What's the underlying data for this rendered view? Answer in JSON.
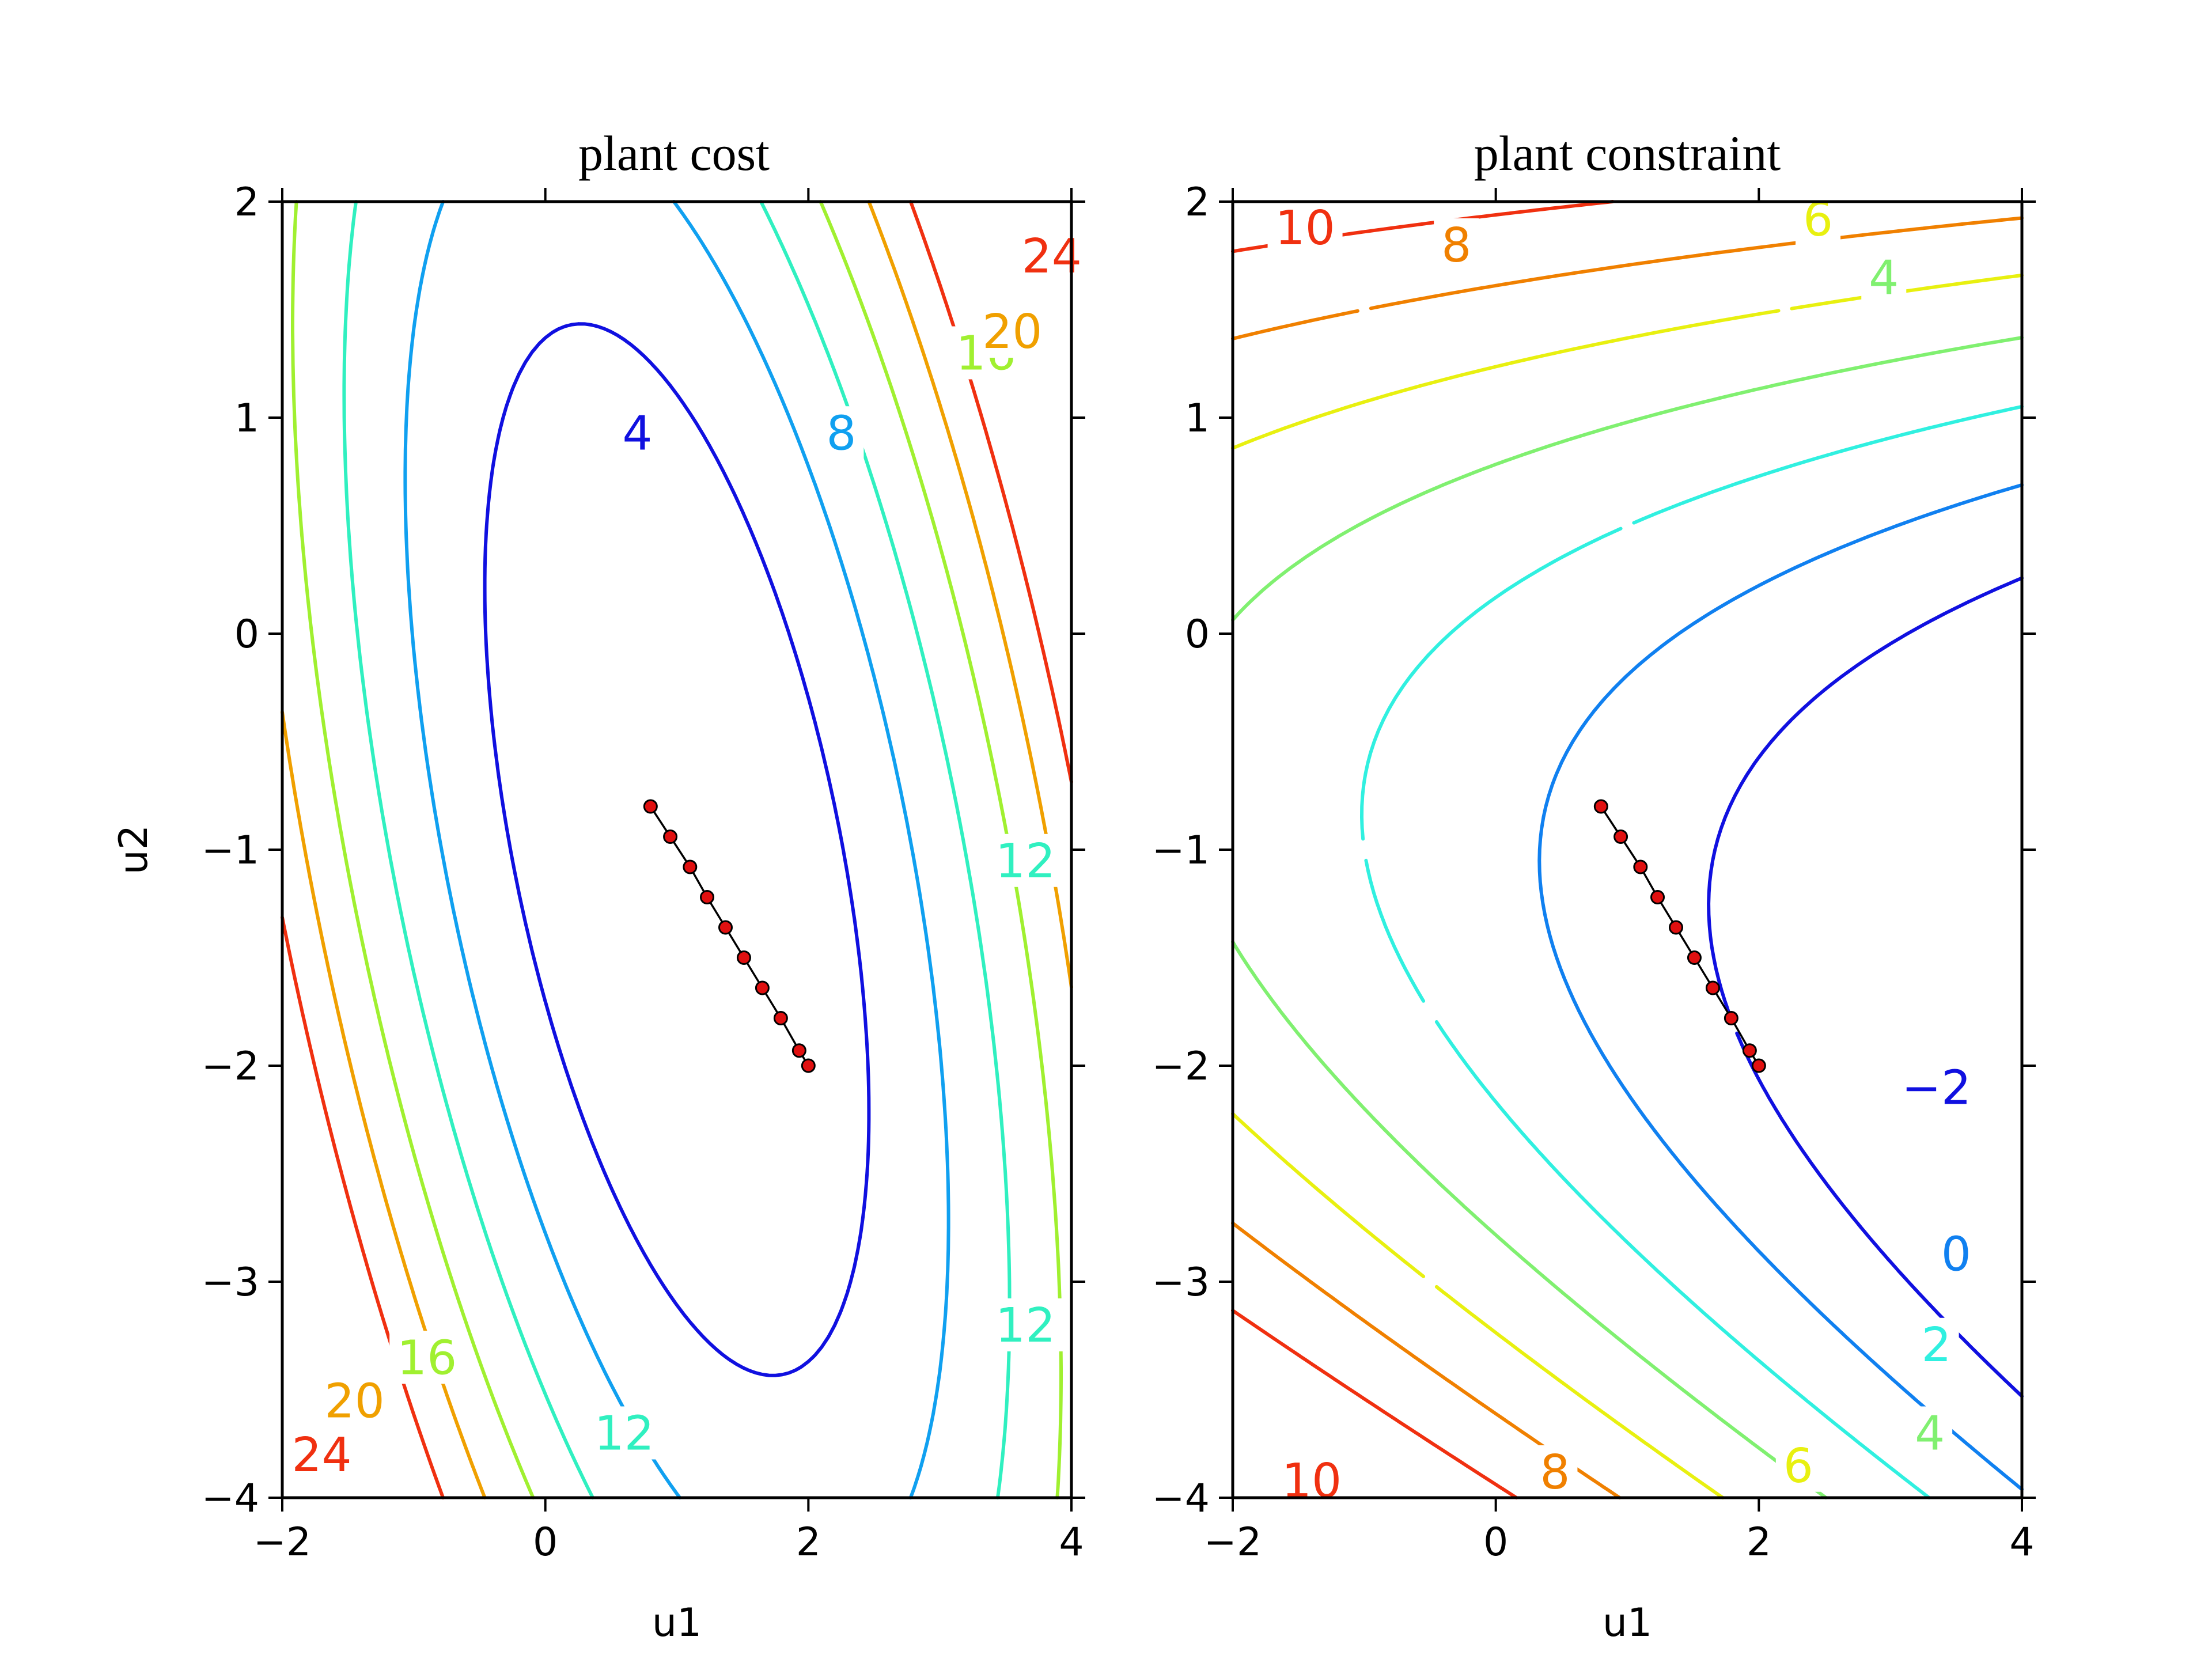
{
  "chart_data": [
    {
      "type": "contour",
      "title": "plant cost",
      "xlabel": "u1",
      "ylabel": "u2",
      "xlim": [
        -2,
        4
      ],
      "ylim": [
        -4,
        2
      ],
      "xticks": [
        "−2",
        "0",
        "2",
        "4"
      ],
      "yticks": [
        "−4",
        "−3",
        "−2",
        "−1",
        "0",
        "1",
        "2"
      ],
      "contour_levels": [
        4,
        8,
        12,
        16,
        20,
        24
      ],
      "labels": [
        {
          "text": "4",
          "x": 0.7,
          "y": 0.93,
          "color": "#1010e0"
        },
        {
          "text": "8",
          "x": 2.25,
          "y": 0.93,
          "color": "#10a0f0"
        },
        {
          "text": "12",
          "x": 3.65,
          "y": -1.05,
          "color": "#30f0c0"
        },
        {
          "text": "12",
          "x": 3.65,
          "y": -3.2,
          "color": "#30f0c0"
        },
        {
          "text": "12",
          "x": 0.6,
          "y": -3.7,
          "color": "#30f0c0"
        },
        {
          "text": "16",
          "x": 3.35,
          "y": 1.3,
          "color": "#a0f030"
        },
        {
          "text": "16",
          "x": -0.9,
          "y": -3.35,
          "color": "#a0f030"
        },
        {
          "text": "20",
          "x": 3.55,
          "y": 1.4,
          "color": "#f0a000"
        },
        {
          "text": "20",
          "x": -1.45,
          "y": -3.55,
          "color": "#f0a000"
        },
        {
          "text": "24",
          "x": 3.85,
          "y": 1.75,
          "color": "#f03010"
        },
        {
          "text": "24",
          "x": -1.7,
          "y": -3.8,
          "color": "#f03010"
        }
      ],
      "path": {
        "x": [
          0.8,
          0.95,
          1.1,
          1.23,
          1.37,
          1.51,
          1.65,
          1.79,
          1.93,
          2.0
        ],
        "y": [
          -0.8,
          -0.94,
          -1.08,
          -1.22,
          -1.36,
          -1.5,
          -1.64,
          -1.78,
          -1.93,
          -2.0
        ]
      }
    },
    {
      "type": "contour",
      "title": "plant constraint",
      "xlabel": "u1",
      "ylabel": "",
      "xlim": [
        -2,
        4
      ],
      "ylim": [
        -4,
        2
      ],
      "xticks": [
        "−2",
        "0",
        "2",
        "4"
      ],
      "yticks": [
        "−4",
        "−3",
        "−2",
        "−1",
        "0",
        "1",
        "2"
      ],
      "contour_levels": [
        -2,
        0,
        2,
        4,
        6,
        8,
        10
      ],
      "labels": [
        {
          "text": "10",
          "x": -1.45,
          "y": 1.88,
          "color": "#f03010"
        },
        {
          "text": "8",
          "x": -0.3,
          "y": 1.8,
          "color": "#f08000"
        },
        {
          "text": "6",
          "x": 2.45,
          "y": 1.92,
          "color": "#e8f010"
        },
        {
          "text": "4",
          "x": 2.95,
          "y": 1.65,
          "color": "#80f070"
        },
        {
          "text": "−2",
          "x": 3.35,
          "y": -2.1,
          "color": "#1010e0"
        },
        {
          "text": "0",
          "x": 3.5,
          "y": -2.87,
          "color": "#1080f0"
        },
        {
          "text": "2",
          "x": 3.35,
          "y": -3.29,
          "color": "#30f0e0"
        },
        {
          "text": "4",
          "x": 3.3,
          "y": -3.7,
          "color": "#80f070"
        },
        {
          "text": "6",
          "x": 2.3,
          "y": -3.85,
          "color": "#e8f010"
        },
        {
          "text": "8",
          "x": 0.45,
          "y": -3.88,
          "color": "#f08000"
        },
        {
          "text": "10",
          "x": -1.4,
          "y": -3.92,
          "color": "#f03010"
        }
      ],
      "path": {
        "x": [
          0.8,
          0.95,
          1.1,
          1.23,
          1.37,
          1.51,
          1.65,
          1.79,
          1.93,
          2.0
        ],
        "y": [
          -0.8,
          -0.94,
          -1.08,
          -1.22,
          -1.36,
          -1.5,
          -1.64,
          -1.78,
          -1.93,
          -2.0
        ]
      }
    }
  ],
  "colors": {
    "cost": {
      "4": "#1010e0",
      "8": "#10a0f0",
      "12": "#30f0c0",
      "16": "#a0f030",
      "20": "#f0a000",
      "24": "#f03010"
    },
    "constraint": {
      "-2": "#1010e0",
      "0": "#1080f0",
      "2": "#30f0e0",
      "4": "#80f070",
      "6": "#e8f010",
      "8": "#f08000",
      "10": "#f03010"
    },
    "path_point": "#e01010"
  }
}
